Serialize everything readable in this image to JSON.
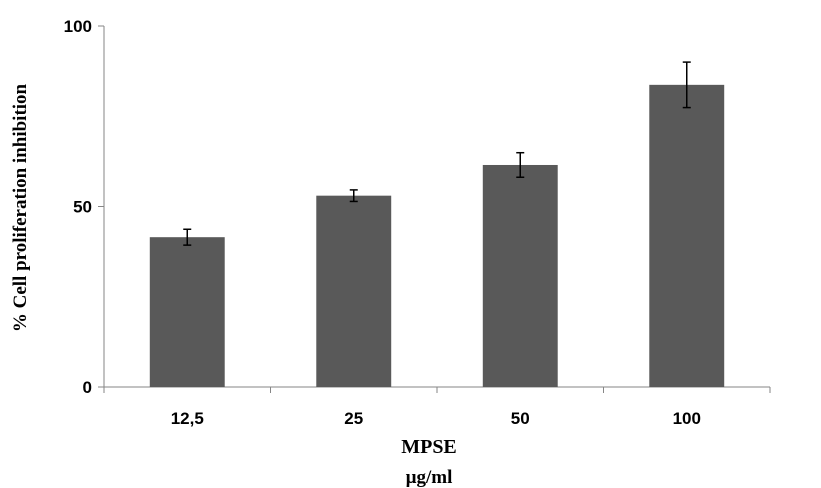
{
  "chart_data": {
    "type": "bar",
    "title": "",
    "xlabel": "MPSE",
    "xlabel_unit": "µg/ml",
    "ylabel": "% Cell proliferation  inhibition",
    "categories": [
      "12,5",
      "25",
      "50",
      "100"
    ],
    "values": [
      41.5,
      53,
      61.5,
      83.7
    ],
    "error": [
      2.2,
      1.6,
      3.4,
      6.3
    ],
    "ylim": [
      0,
      100
    ],
    "yticks": [
      "0",
      "50",
      "100"
    ],
    "yticks_values": [
      0,
      50,
      100
    ],
    "grid": false,
    "legend": "none",
    "bar_color": "#595959",
    "axis_color": "#868686"
  }
}
